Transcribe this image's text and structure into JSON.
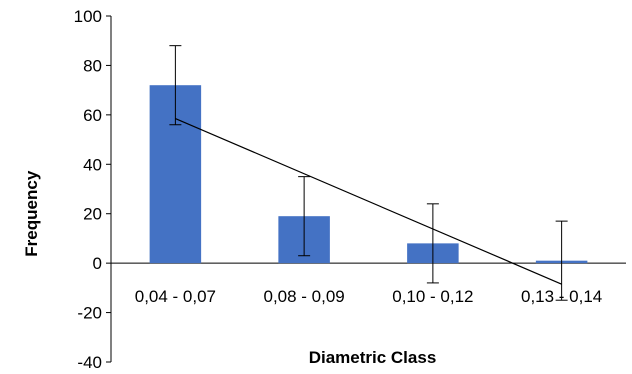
{
  "chart_data": {
    "type": "bar",
    "title": "",
    "xlabel": "Diametric Class",
    "ylabel": "Frequency",
    "categories": [
      "0,04 - 0,07",
      "0,08 - 0,09",
      "0,10 - 0,12",
      "0,13 - 0,14"
    ],
    "series": [
      {
        "values": [
          72,
          19,
          8,
          1
        ],
        "error": [
          16,
          16,
          16,
          16
        ],
        "color": "#4472C4"
      }
    ],
    "trendline": {
      "type": "linear",
      "start": 58.5,
      "end": -8.5,
      "color": "#000000"
    },
    "ylim": [
      -40,
      100
    ],
    "yticks": [
      -40,
      -20,
      0,
      20,
      40,
      60,
      80,
      100
    ],
    "grid": false,
    "legend": "none"
  }
}
